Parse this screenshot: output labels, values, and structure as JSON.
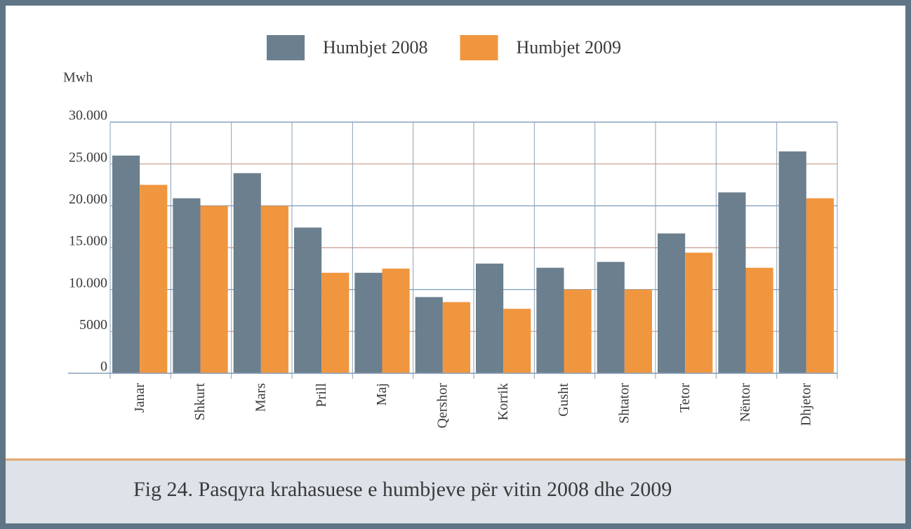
{
  "chart_data": {
    "type": "bar",
    "caption": "Fig 24. Pasqyra krahasuese e humbjeve për vitin 2008 dhe 2009",
    "y_label": "Mwh",
    "categories": [
      "Janar",
      "Shkurt",
      "Mars",
      "Prill",
      "Maj",
      "Qershor",
      "Korrik",
      "Gusht",
      "Shtator",
      "Tetor",
      "Nëntor",
      "Dhjetor"
    ],
    "series": [
      {
        "name": "Humbjet 2008",
        "color": "#6b7f8e",
        "values": [
          26000,
          20900,
          23900,
          17400,
          12000,
          9100,
          13100,
          12600,
          13300,
          16700,
          21600,
          26500
        ]
      },
      {
        "name": "Humbjet 2009",
        "color": "#f0963f",
        "values": [
          22500,
          20000,
          20000,
          12000,
          12500,
          8500,
          7700,
          10000,
          10000,
          14400,
          12600,
          20900
        ]
      }
    ],
    "ylim": [
      0,
      30000
    ],
    "yticks": [
      0,
      5000,
      {
        "value": 10000,
        "label": "10.000"
      },
      {
        "value": 15000,
        "label": "15.000"
      },
      {
        "value": 20000,
        "label": "20.000"
      },
      {
        "value": 25000,
        "label": "25.000"
      },
      {
        "value": 30000,
        "label": "30.000"
      }
    ],
    "grid": true,
    "legend": "top"
  }
}
